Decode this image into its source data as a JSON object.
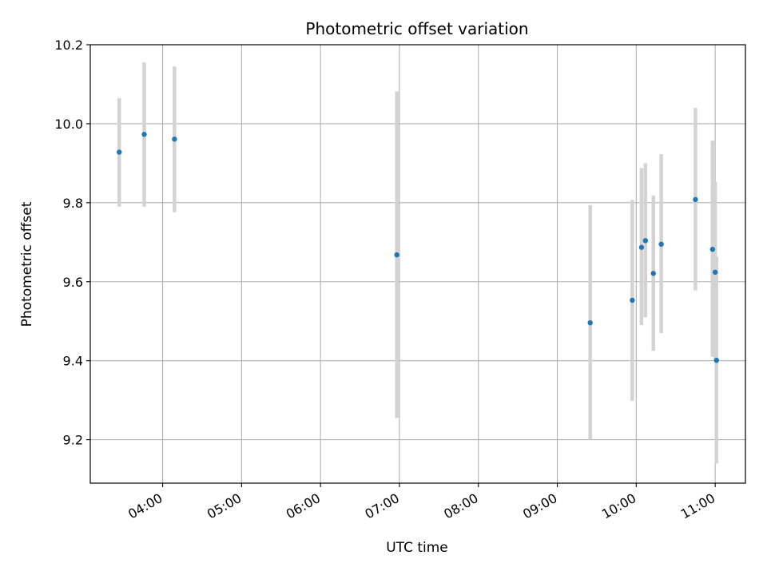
{
  "chart_data": {
    "type": "scatter",
    "title": "Photometric offset variation",
    "xlabel": "UTC time",
    "ylabel": "Photometric offset",
    "xlim": [
      "03:05",
      "11:23"
    ],
    "ylim": [
      9.09,
      10.2
    ],
    "x_ticks": [
      "04:00",
      "05:00",
      "06:00",
      "07:00",
      "08:00",
      "09:00",
      "10:00",
      "11:00"
    ],
    "y_ticks": [
      9.2,
      9.4,
      9.6,
      9.8,
      10.0,
      10.2
    ],
    "y_tick_labels": [
      "9.2",
      "9.4",
      "9.6",
      "9.8",
      "10.0",
      "10.2"
    ],
    "grid": true,
    "points": [
      {
        "t": "03:27",
        "y": 9.928,
        "lo": 9.79,
        "hi": 10.065
      },
      {
        "t": "03:46",
        "y": 9.973,
        "lo": 9.79,
        "hi": 10.155
      },
      {
        "t": "04:09",
        "y": 9.961,
        "lo": 9.776,
        "hi": 10.145
      },
      {
        "t": "06:58",
        "y": 9.668,
        "lo": 9.255,
        "hi": 10.082
      },
      {
        "t": "09:25",
        "y": 9.496,
        "lo": 9.2,
        "hi": 9.794
      },
      {
        "t": "09:57",
        "y": 9.553,
        "lo": 9.298,
        "hi": 9.807
      },
      {
        "t": "10:04",
        "y": 9.687,
        "lo": 9.49,
        "hi": 9.888
      },
      {
        "t": "10:07",
        "y": 9.704,
        "lo": 9.51,
        "hi": 9.9
      },
      {
        "t": "10:13",
        "y": 9.621,
        "lo": 9.425,
        "hi": 9.818
      },
      {
        "t": "10:19",
        "y": 9.695,
        "lo": 9.47,
        "hi": 9.923
      },
      {
        "t": "10:45",
        "y": 9.808,
        "lo": 9.578,
        "hi": 10.04
      },
      {
        "t": "10:58",
        "y": 9.682,
        "lo": 9.41,
        "hi": 9.957
      },
      {
        "t": "11:00",
        "y": 9.624,
        "lo": 9.405,
        "hi": 9.853
      },
      {
        "t": "11:01",
        "y": 9.401,
        "lo": 9.14,
        "hi": 9.663
      }
    ],
    "point_color": "#1f77b4",
    "errorbar_color": "#d3d3d3",
    "grid_color": "#b0b0b0"
  }
}
